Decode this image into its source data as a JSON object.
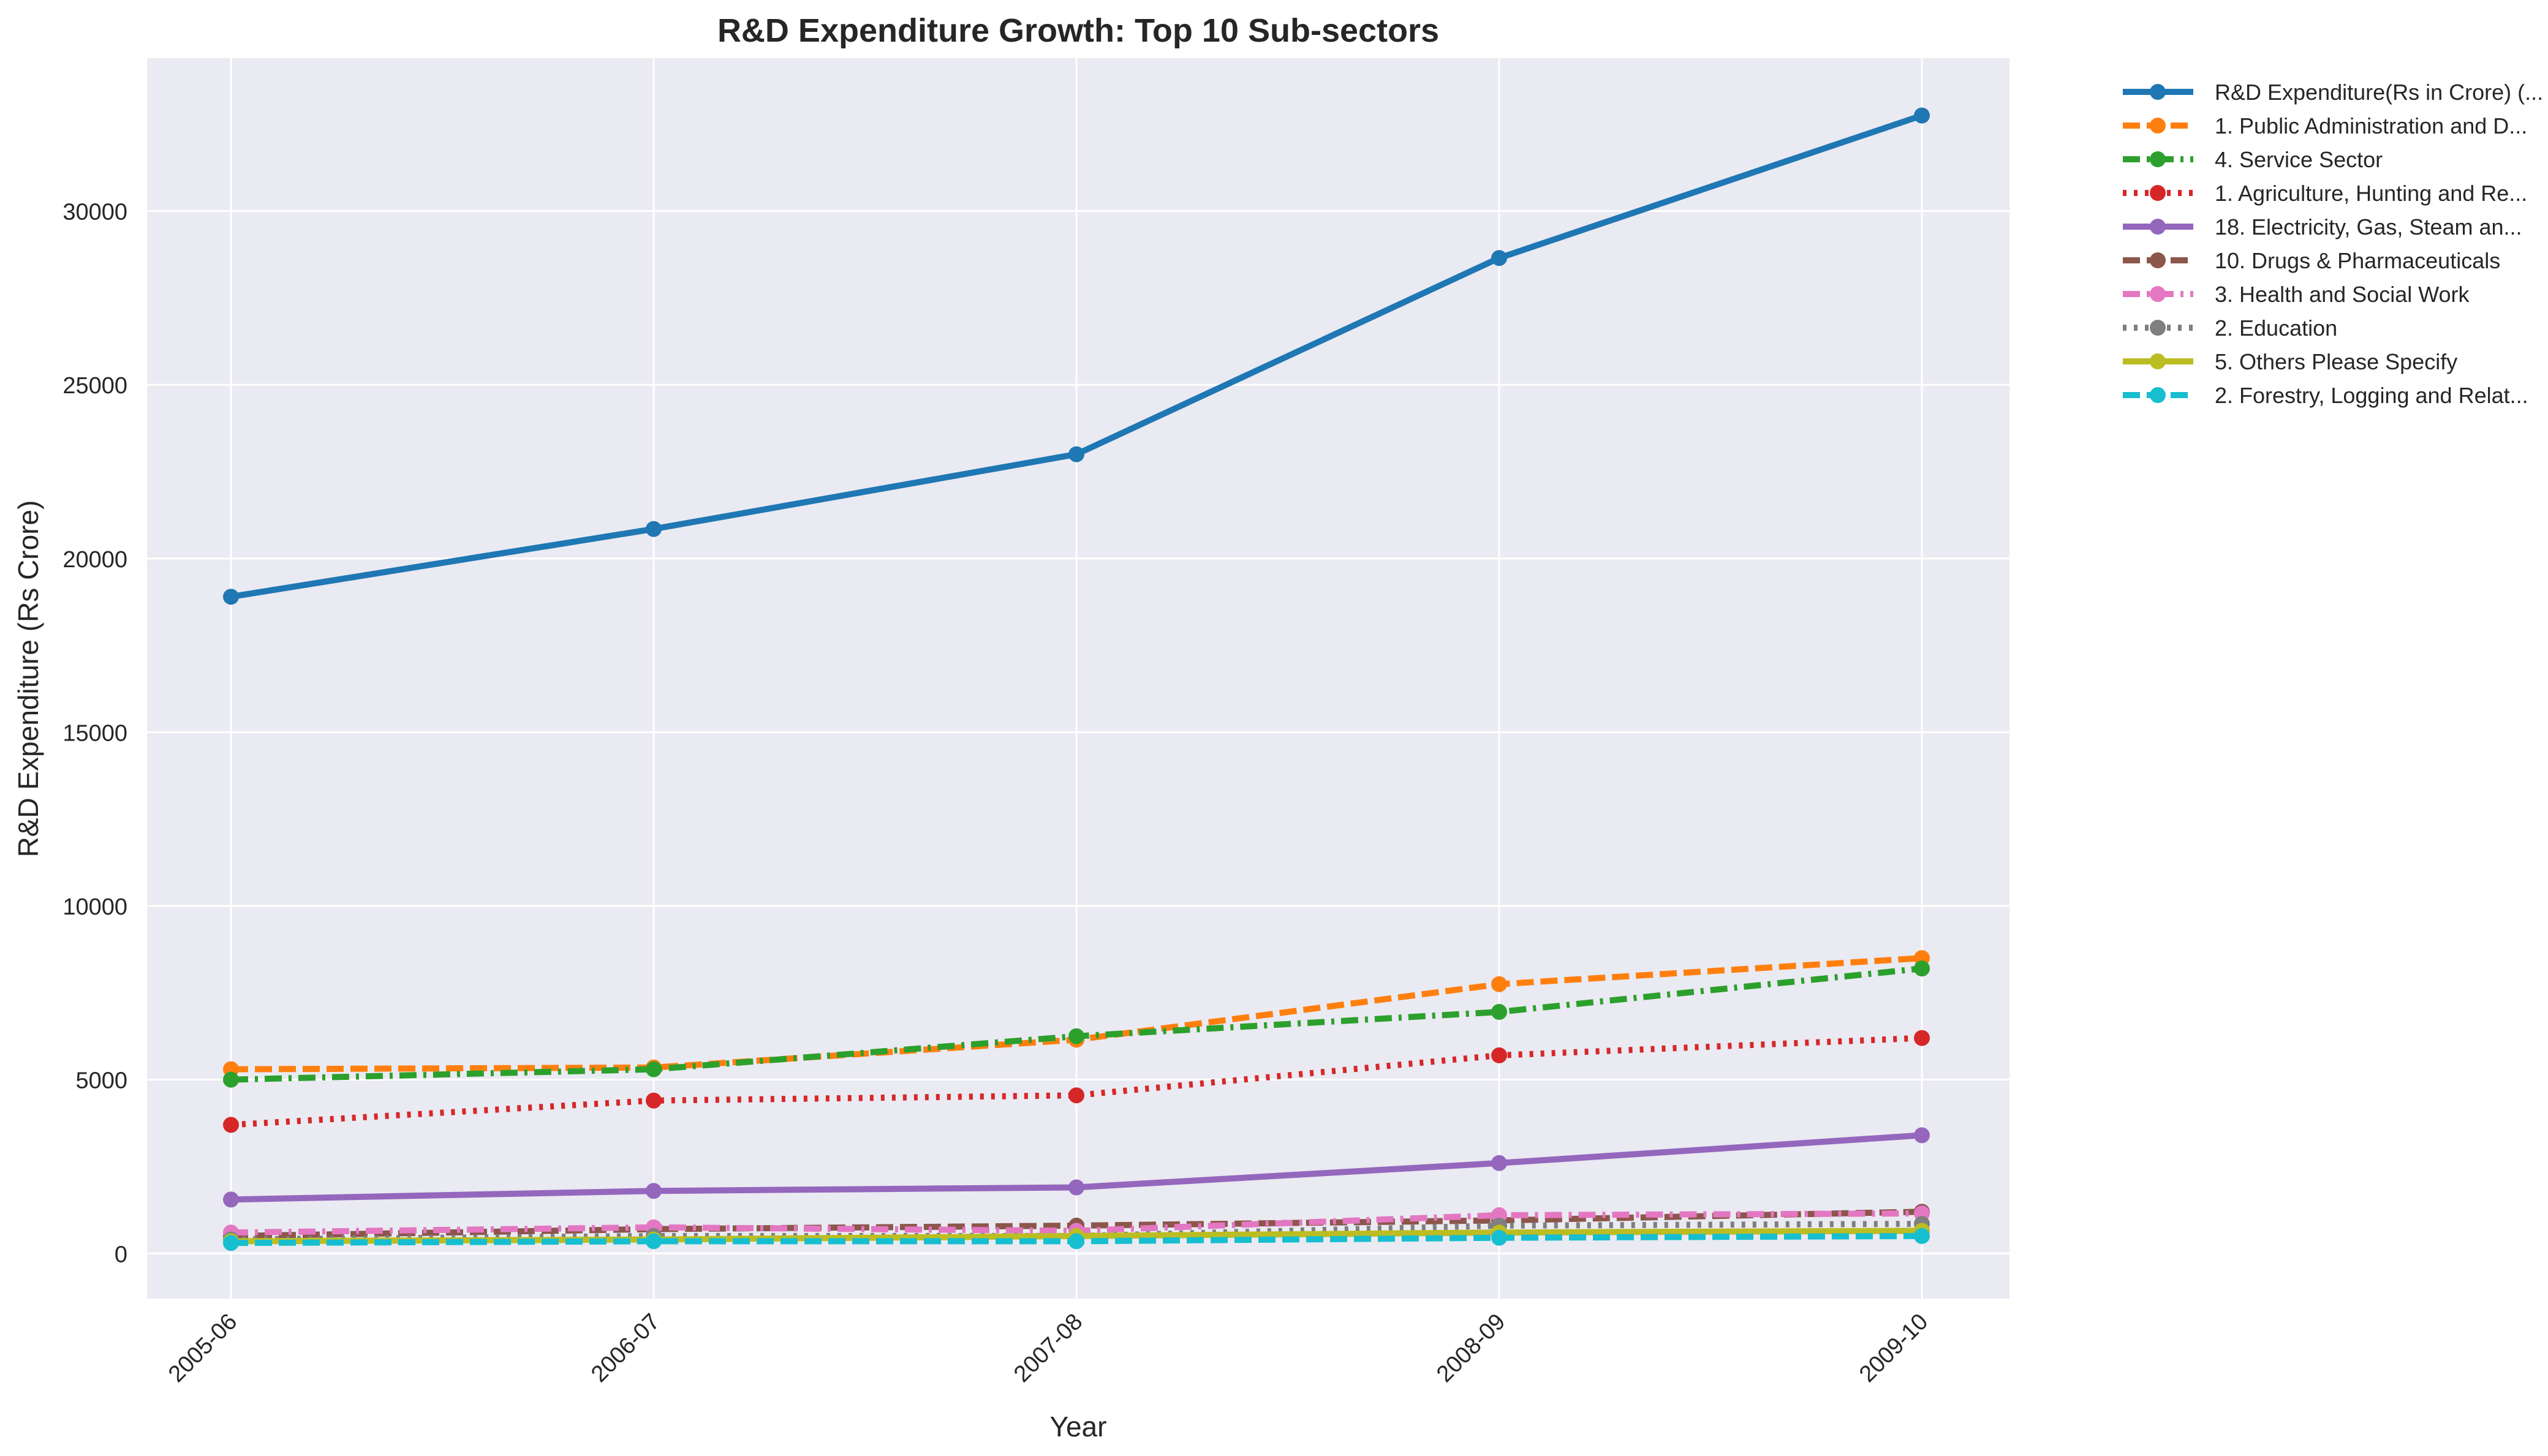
{
  "chart_data": {
    "type": "line",
    "title": "R&D Expenditure Growth: Top 10 Sub-sectors",
    "xlabel": "Year",
    "ylabel": "R&D Expenditure (Rs Crore)",
    "categories": [
      "2005-06",
      "2006-07",
      "2007-08",
      "2008-09",
      "2009-10"
    ],
    "ylim": [
      -1300,
      34400
    ],
    "yticks": [
      0,
      5000,
      10000,
      15000,
      20000,
      25000,
      30000
    ],
    "grid": true,
    "legend_position": "outside-top-right",
    "series": [
      {
        "name": "R&D Expenditure(Rs in Crore) (...",
        "color": "#1f77b4",
        "dash": "solid",
        "values": [
          18900,
          20850,
          23000,
          28650,
          32750
        ]
      },
      {
        "name": "1. Public Administration and D...",
        "color": "#ff7f0e",
        "dash": "dashed",
        "values": [
          5300,
          5350,
          6150,
          7750,
          8500
        ]
      },
      {
        "name": "4. Service Sector",
        "color": "#2ca02c",
        "dash": "dashdot",
        "values": [
          5000,
          5300,
          6250,
          6950,
          8200
        ]
      },
      {
        "name": "1. Agriculture, Hunting and Re...",
        "color": "#d62728",
        "dash": "dotted",
        "values": [
          3700,
          4400,
          4550,
          5700,
          6200
        ]
      },
      {
        "name": "18. Electricity, Gas, Steam an...",
        "color": "#9467bd",
        "dash": "solid",
        "values": [
          1550,
          1800,
          1900,
          2600,
          3400
        ]
      },
      {
        "name": "10. Drugs & Pharmaceuticals",
        "color": "#8c564b",
        "dash": "dashed",
        "values": [
          500,
          700,
          800,
          950,
          1200
        ]
      },
      {
        "name": "3. Health and Social Work",
        "color": "#e377c2",
        "dash": "dashdot",
        "values": [
          600,
          750,
          650,
          1100,
          1150
        ]
      },
      {
        "name": "2. Education",
        "color": "#7f7f7f",
        "dash": "dotted",
        "values": [
          400,
          500,
          500,
          800,
          850
        ]
      },
      {
        "name": "5. Others Please Specify",
        "color": "#bcbd22",
        "dash": "solid",
        "values": [
          350,
          400,
          500,
          600,
          650
        ]
      },
      {
        "name": "2. Forestry, Logging and Relat...",
        "color": "#17becf",
        "dash": "dashed",
        "values": [
          300,
          350,
          350,
          450,
          500
        ]
      }
    ]
  }
}
